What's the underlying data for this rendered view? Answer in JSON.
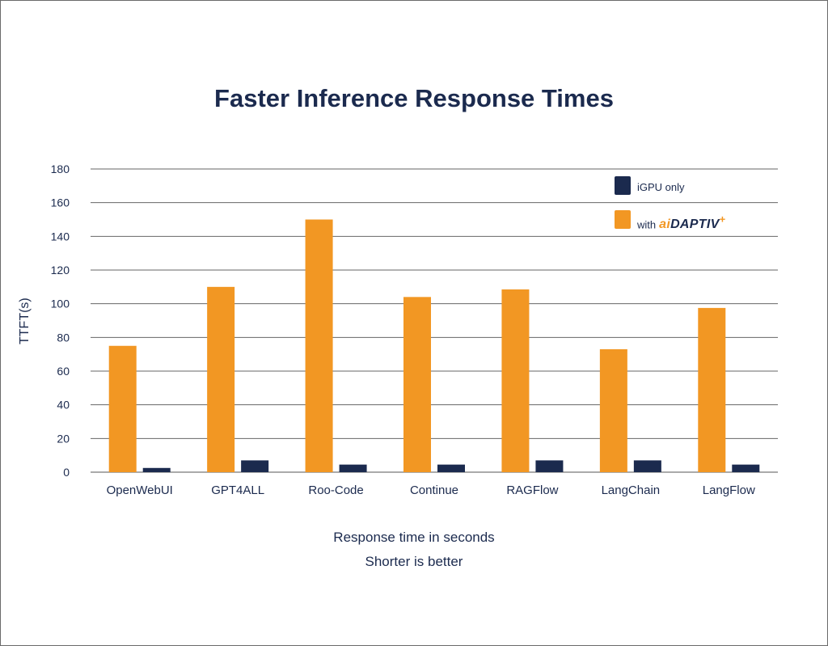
{
  "chart_data": {
    "type": "bar",
    "title": "Faster Inference Response Times",
    "ylabel": "TTFT(s)",
    "xlabel_lines": [
      "Response time in seconds",
      "Shorter is better"
    ],
    "categories": [
      "OpenWebUI",
      "GPT4ALL",
      "Roo-Code",
      "Continue",
      "RAGFlow",
      "LangChain",
      "LangFlow"
    ],
    "series": [
      {
        "name": "with aiDAPTIV+",
        "color": "#f29723",
        "values": [
          75,
          110,
          150,
          104,
          108.5,
          73,
          97.5
        ]
      },
      {
        "name": "iGPU only",
        "color": "#1b2a4e",
        "values": [
          2.5,
          7,
          4.5,
          4.5,
          7,
          7,
          4.5
        ]
      }
    ],
    "ylim": [
      0,
      180
    ],
    "yticks": [
      0,
      20,
      40,
      60,
      80,
      100,
      120,
      140,
      160,
      180
    ],
    "grid": true,
    "legend_position": "top-right"
  },
  "legend": {
    "igpu_label": "iGPU only",
    "with_label": "with",
    "brand_ai": "ai",
    "brand_rest": "DAPTIV",
    "brand_spark": "+"
  }
}
